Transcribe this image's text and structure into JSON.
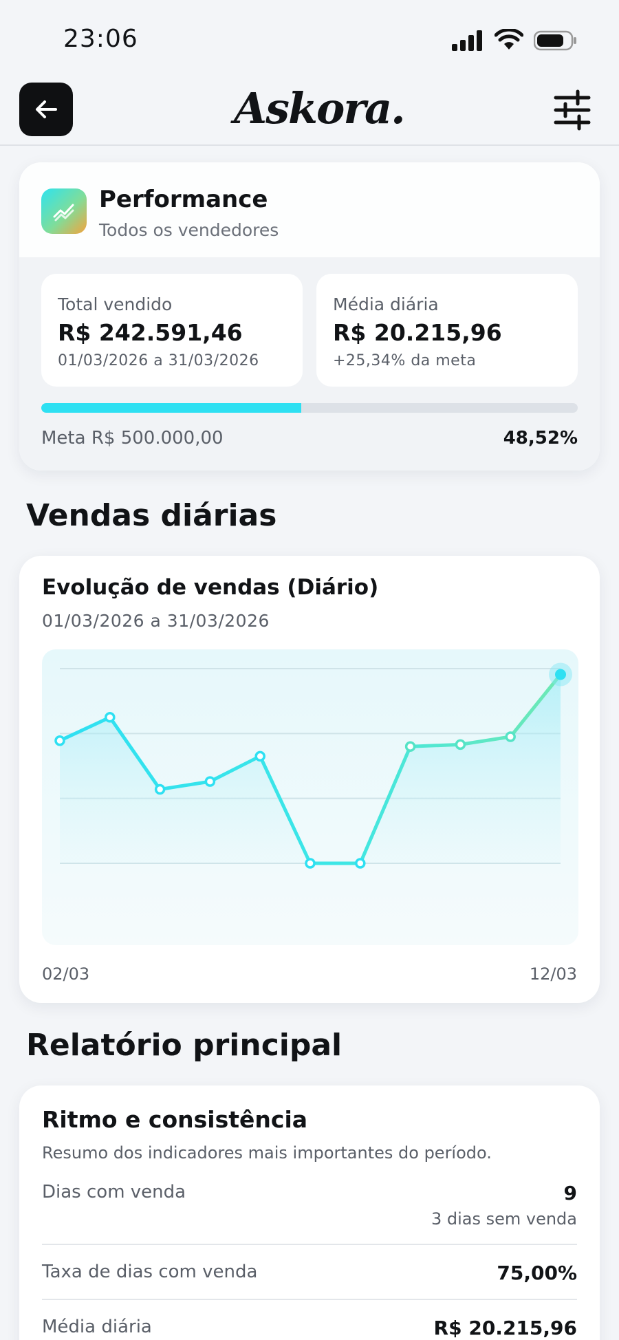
{
  "status_bar": {
    "time": "23:06"
  },
  "header": {
    "logo": "Askora."
  },
  "performance": {
    "title": "Performance",
    "subtitle": "Todos os vendedores",
    "total": {
      "label": "Total vendido",
      "value": "R$ 242.591,46",
      "sub": "01/03/2026 a 31/03/2026"
    },
    "average": {
      "label": "Média diária",
      "value": "R$ 20.215,96",
      "sub": "+25,34% da meta"
    },
    "progress_fraction": 0.4852,
    "goal_label": "Meta R$ 500.000,00",
    "goal_percent": "48,52%"
  },
  "sections": {
    "daily_sales": "Vendas diárias",
    "main_report": "Relatório principal"
  },
  "chart_data": {
    "type": "line",
    "title": "Evolução de vendas (Diário)",
    "subtitle": "01/03/2026 a 31/03/2026",
    "x_start_label": "02/03",
    "x_end_label": "12/03",
    "values": [
      63,
      75,
      38,
      42,
      55,
      0,
      0,
      60,
      61,
      65,
      97
    ],
    "ylim": [
      0,
      100
    ],
    "grid": true,
    "highlight_last": true
  },
  "report": {
    "title": "Ritmo e consistência",
    "description": "Resumo dos indicadores mais importantes do período.",
    "rows": [
      {
        "label": "Dias com venda",
        "value": "9",
        "note": "3 dias sem venda"
      },
      {
        "label": "Taxa de dias com venda",
        "value": "75,00%"
      },
      {
        "label": "Média diária",
        "value": "R$ 20.215,96"
      }
    ]
  },
  "colors": {
    "accent": "#2ee0f2",
    "line_end": "#6ee8b4",
    "text": "#111316",
    "muted": "#5a5f68"
  }
}
